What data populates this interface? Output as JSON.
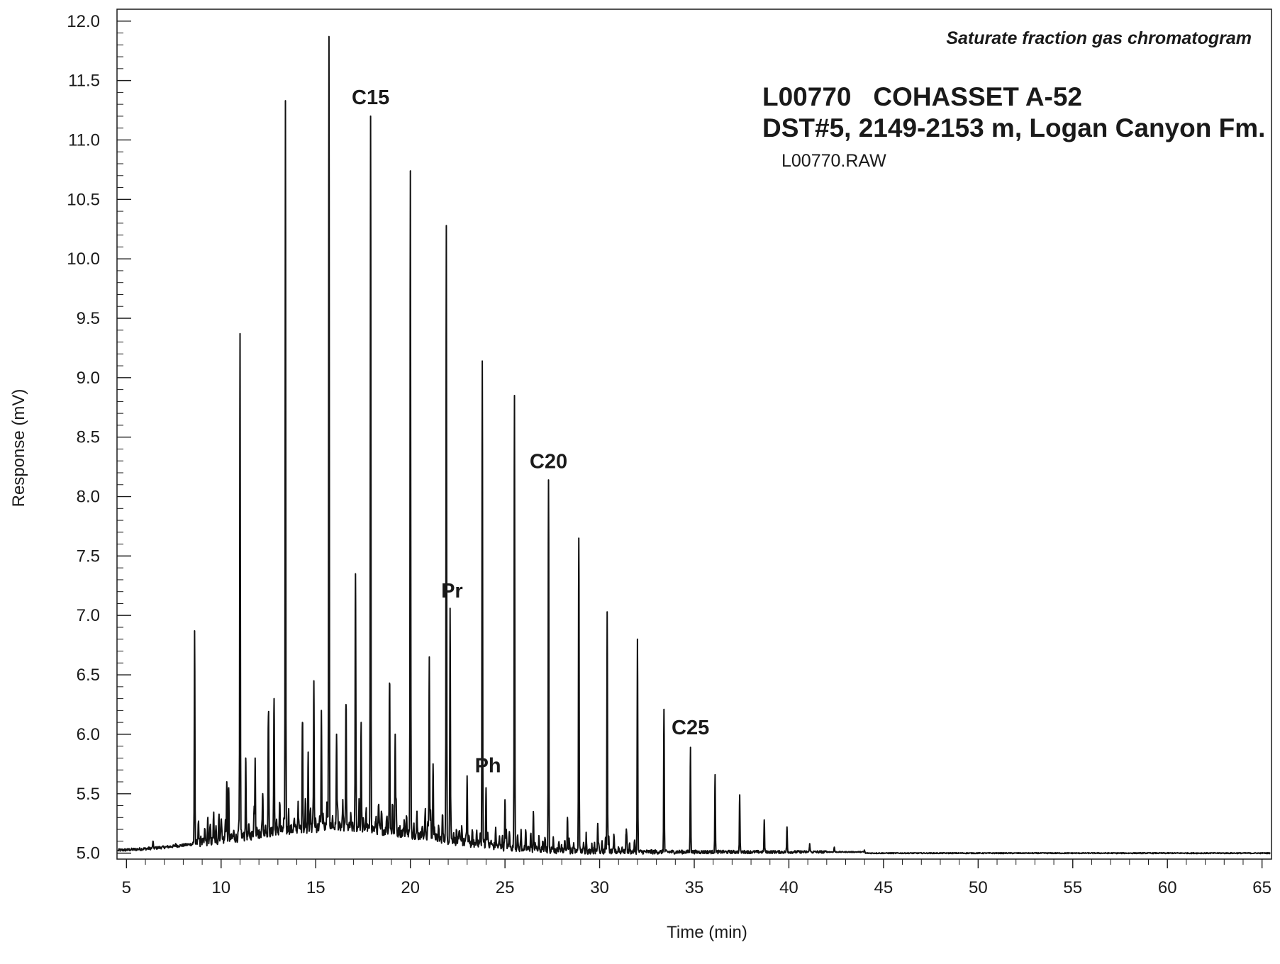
{
  "header": {
    "chart_title": "Saturate fraction gas chromatogram",
    "sample_line1": "L00770   COHASSET A-52",
    "sample_line2": "DST#5, 2149-2153 m, Logan Canyon Fm.",
    "file_name": "L00770.RAW"
  },
  "chart_data": {
    "type": "line",
    "title": "Saturate fraction gas chromatogram",
    "xlabel": "Time (min)",
    "ylabel": "Response (mV)",
    "xlim": [
      4.5,
      65.5
    ],
    "ylim": [
      4.95,
      12.1
    ],
    "x_ticks": [
      5,
      10,
      15,
      20,
      25,
      30,
      35,
      40,
      45,
      50,
      55,
      60,
      65
    ],
    "x_tick_labels": [
      "5",
      "10",
      "15",
      "20",
      "25",
      "30",
      "35",
      "40",
      "45",
      "50",
      "55",
      "60",
      "65"
    ],
    "y_ticks": [
      5.0,
      5.5,
      6.0,
      6.5,
      7.0,
      7.5,
      8.0,
      8.5,
      9.0,
      9.5,
      10.0,
      10.5,
      11.0,
      11.5,
      12.0
    ],
    "y_tick_labels": [
      "5.0",
      "5.5",
      "6.0",
      "6.5",
      "7.0",
      "7.5",
      "8.0",
      "8.5",
      "9.0",
      "9.5",
      "10.0",
      "10.5",
      "11.0",
      "11.5",
      "12.0"
    ],
    "grid": false,
    "series": [
      {
        "peaks": [
          {
            "x": 6.4,
            "y": 5.1
          },
          {
            "x": 7.6,
            "y": 5.08
          },
          {
            "x": 8.6,
            "y": 6.87
          },
          {
            "x": 9.3,
            "y": 5.3
          },
          {
            "x": 10.0,
            "y": 5.28
          },
          {
            "x": 10.3,
            "y": 5.6
          },
          {
            "x": 10.4,
            "y": 5.55
          },
          {
            "x": 11.0,
            "y": 9.37
          },
          {
            "x": 11.3,
            "y": 5.8
          },
          {
            "x": 11.8,
            "y": 5.8
          },
          {
            "x": 12.2,
            "y": 5.5
          },
          {
            "x": 12.5,
            "y": 6.15
          },
          {
            "x": 12.8,
            "y": 6.3
          },
          {
            "x": 13.4,
            "y": 11.33
          },
          {
            "x": 14.3,
            "y": 6.1
          },
          {
            "x": 14.6,
            "y": 5.85
          },
          {
            "x": 14.9,
            "y": 6.45
          },
          {
            "x": 15.3,
            "y": 6.2
          },
          {
            "x": 15.7,
            "y": 11.87
          },
          {
            "x": 16.1,
            "y": 6.0
          },
          {
            "x": 16.6,
            "y": 6.25
          },
          {
            "x": 17.1,
            "y": 7.35
          },
          {
            "x": 17.4,
            "y": 6.1
          },
          {
            "x": 17.9,
            "y": 11.2
          },
          {
            "x": 18.9,
            "y": 6.43
          },
          {
            "x": 19.2,
            "y": 6.0
          },
          {
            "x": 20.0,
            "y": 10.74
          },
          {
            "x": 21.0,
            "y": 6.65
          },
          {
            "x": 21.2,
            "y": 5.75
          },
          {
            "x": 21.9,
            "y": 10.28
          },
          {
            "x": 22.1,
            "y": 7.06
          },
          {
            "x": 23.0,
            "y": 5.65
          },
          {
            "x": 23.8,
            "y": 9.14
          },
          {
            "x": 24.0,
            "y": 5.55
          },
          {
            "x": 25.0,
            "y": 5.45
          },
          {
            "x": 25.5,
            "y": 8.85
          },
          {
            "x": 26.5,
            "y": 5.35
          },
          {
            "x": 27.3,
            "y": 8.14
          },
          {
            "x": 28.3,
            "y": 5.3
          },
          {
            "x": 28.9,
            "y": 7.65
          },
          {
            "x": 29.9,
            "y": 5.25
          },
          {
            "x": 30.4,
            "y": 7.03
          },
          {
            "x": 31.4,
            "y": 5.15
          },
          {
            "x": 32.0,
            "y": 6.8
          },
          {
            "x": 33.4,
            "y": 6.21
          },
          {
            "x": 34.8,
            "y": 5.89
          },
          {
            "x": 36.1,
            "y": 5.66
          },
          {
            "x": 37.4,
            "y": 5.49
          },
          {
            "x": 38.7,
            "y": 5.28
          },
          {
            "x": 39.9,
            "y": 5.22
          },
          {
            "x": 41.1,
            "y": 5.08
          },
          {
            "x": 42.4,
            "y": 5.05
          },
          {
            "x": 44.0,
            "y": 5.02
          }
        ]
      }
    ],
    "annotations": [
      {
        "text": "C15",
        "x": 17.9,
        "y": 11.3
      },
      {
        "text": "Pr",
        "x": 22.2,
        "y": 7.15
      },
      {
        "text": "C20",
        "x": 27.3,
        "y": 8.24
      },
      {
        "text": "Ph",
        "x": 24.1,
        "y": 5.68
      },
      {
        "text": "C25",
        "x": 34.8,
        "y": 6.0
      }
    ]
  }
}
